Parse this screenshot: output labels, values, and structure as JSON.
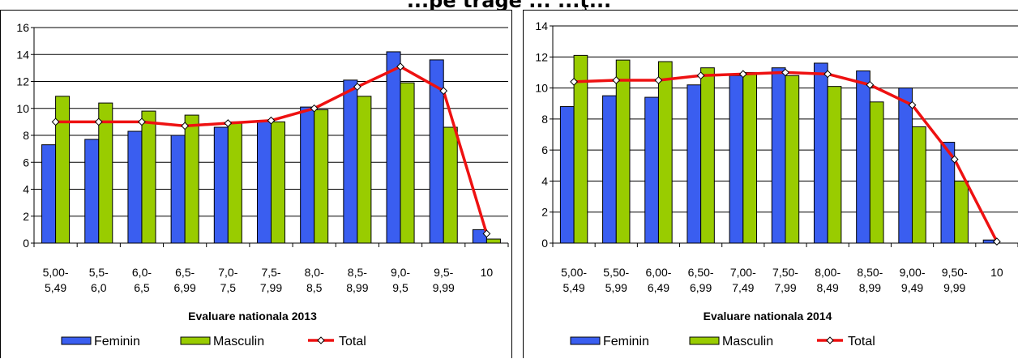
{
  "page_title": "...pe trage ... ...ţ...",
  "chart_data": [
    {
      "type": "bar",
      "id": "2013",
      "title": "Evaluare nationala 2013",
      "xlabel": "Evaluare nationala 2013",
      "ylabel": "",
      "ylim": [
        0,
        16
      ],
      "yticks": [
        0,
        2,
        4,
        6,
        8,
        10,
        12,
        14,
        16
      ],
      "grid": true,
      "legend_position": "bottom",
      "categories": [
        [
          "5,00-",
          "5,49"
        ],
        [
          "5,5-",
          "6,0"
        ],
        [
          "6,0-",
          "6,5"
        ],
        [
          "6,5-",
          "6,99"
        ],
        [
          "7,0-",
          "7,5"
        ],
        [
          "7,5-",
          "7,99"
        ],
        [
          "8,0-",
          "8,5"
        ],
        [
          "8,5-",
          "8,99"
        ],
        [
          "9,0-",
          "9,5"
        ],
        [
          "9,5-",
          "9,99"
        ],
        [
          "10",
          ""
        ]
      ],
      "series": [
        {
          "name": "Feminin",
          "kind": "bar",
          "color": "#3a5ef0",
          "values": [
            7.3,
            7.7,
            8.3,
            8.0,
            8.6,
            9.1,
            10.1,
            12.1,
            14.2,
            13.6,
            1.0
          ]
        },
        {
          "name": "Masculin",
          "kind": "bar",
          "color": "#99cc00",
          "values": [
            10.9,
            10.4,
            9.8,
            9.5,
            9.0,
            9.0,
            9.9,
            10.9,
            11.9,
            8.6,
            0.3
          ]
        },
        {
          "name": "Total",
          "kind": "line",
          "color": "#ee1111",
          "values": [
            9.0,
            9.0,
            9.0,
            8.7,
            8.9,
            9.1,
            10.0,
            11.6,
            13.1,
            11.3,
            0.7
          ]
        }
      ]
    },
    {
      "type": "bar",
      "id": "2014",
      "title": "Evaluare nationala 2014",
      "xlabel": "Evaluare nationala 2014",
      "ylabel": "",
      "ylim": [
        0,
        14
      ],
      "yticks": [
        0,
        2,
        4,
        6,
        8,
        10,
        12,
        14
      ],
      "grid": true,
      "legend_position": "bottom",
      "categories": [
        [
          "5,00-",
          "5,49"
        ],
        [
          "5,50-",
          "5,99"
        ],
        [
          "6,00-",
          "6,49"
        ],
        [
          "6,50-",
          "6,99"
        ],
        [
          "7,00-",
          "7,49"
        ],
        [
          "7,50-",
          "7,99"
        ],
        [
          "8,00-",
          "8,49"
        ],
        [
          "8,50-",
          "8,99"
        ],
        [
          "9,00-",
          "9,49"
        ],
        [
          "9,50-",
          "9,99"
        ],
        [
          "10",
          ""
        ]
      ],
      "series": [
        {
          "name": "Feminin",
          "kind": "bar",
          "color": "#3a5ef0",
          "values": [
            8.8,
            9.5,
            9.4,
            10.2,
            10.8,
            11.3,
            11.6,
            11.1,
            10.0,
            6.5,
            0.2
          ]
        },
        {
          "name": "Masculin",
          "kind": "bar",
          "color": "#99cc00",
          "values": [
            12.1,
            11.8,
            11.7,
            11.3,
            11.0,
            10.8,
            10.1,
            9.1,
            7.5,
            4.0,
            0.0
          ]
        },
        {
          "name": "Total",
          "kind": "line",
          "color": "#ee1111",
          "values": [
            10.4,
            10.5,
            10.5,
            10.8,
            10.9,
            11.0,
            10.9,
            10.2,
            8.9,
            5.4,
            0.1
          ]
        }
      ]
    }
  ]
}
